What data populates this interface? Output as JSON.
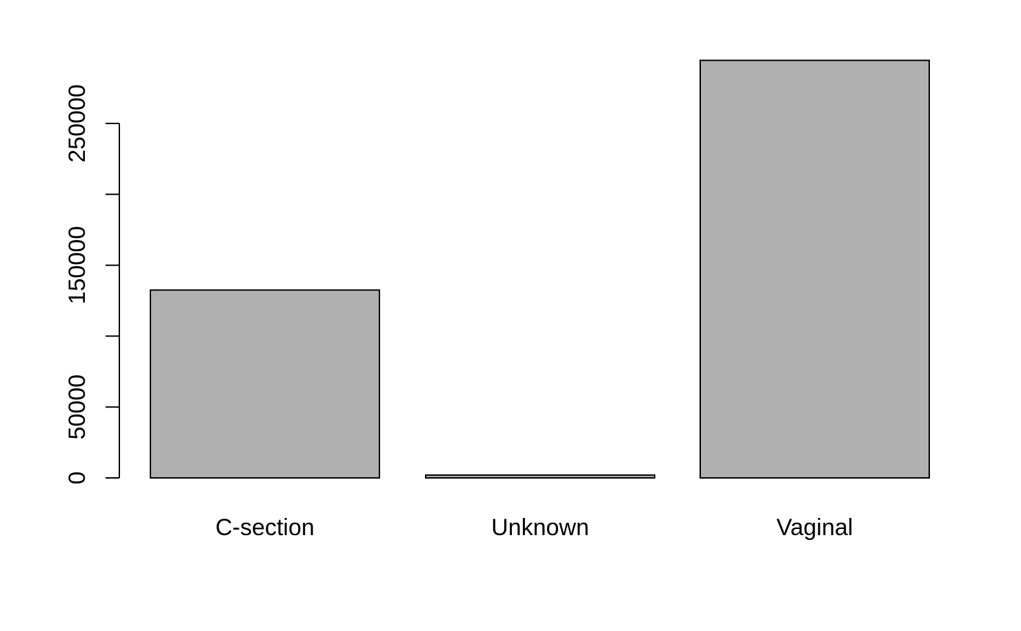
{
  "chart_data": {
    "type": "bar",
    "categories": [
      "C-section",
      "Unknown",
      "Vaginal"
    ],
    "values": [
      132500,
      2000,
      294500
    ],
    "ylim": [
      0,
      294500
    ],
    "yticks": [
      0,
      50000,
      100000,
      150000,
      200000,
      250000
    ],
    "ytick_labels": [
      "0",
      "50000",
      "",
      "150000",
      "",
      "250000"
    ],
    "bar_fill": "#b0b0b0",
    "bar_stroke": "#000000",
    "grid": false,
    "title": "",
    "xlabel": "",
    "ylabel": ""
  }
}
